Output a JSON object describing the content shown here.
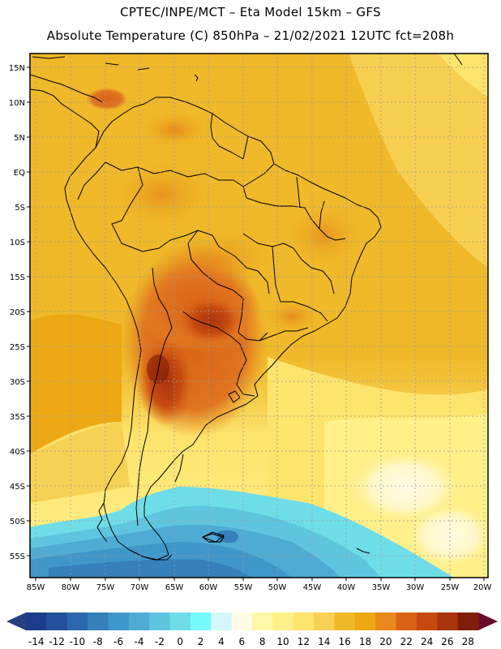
{
  "title_line1": "CPTEC/INPE/MCT –  Eta Model 15km – GFS",
  "title_line2": "Absolute Temperature (C) 850hPa – 21/02/2021 12UTC fct=208h",
  "map": {
    "lat_labels": [
      "15N",
      "10N",
      "5N",
      "EQ",
      "5S",
      "10S",
      "15S",
      "20S",
      "25S",
      "30S",
      "35S",
      "40S",
      "45S",
      "50S",
      "55S"
    ],
    "lon_labels": [
      "85W",
      "80W",
      "75W",
      "70W",
      "65W",
      "60W",
      "55W",
      "50W",
      "45W",
      "40W",
      "35W",
      "30W",
      "25W",
      "20W"
    ]
  },
  "colorbar": {
    "ticks": [
      "-14",
      "-12",
      "-10",
      "-8",
      "-6",
      "-4",
      "-2",
      "0",
      "2",
      "4",
      "6",
      "8",
      "10",
      "12",
      "14",
      "16",
      "18",
      "20",
      "22",
      "24",
      "26",
      "28"
    ],
    "colors": [
      "#1d3d8c",
      "#24519c",
      "#2c68ad",
      "#3680bc",
      "#3f97c9",
      "#4eacd3",
      "#5fc5df",
      "#6fdde8",
      "#76fafa",
      "#d3f7fb",
      "#fffbe6",
      "#fff7a8",
      "#fff08a",
      "#fde46d",
      "#f7d154",
      "#f0b92a",
      "#eda814",
      "#e7891d",
      "#d96314",
      "#c64a10",
      "#a9330c",
      "#7f1e0a"
    ],
    "under_color": "#24407f",
    "over_color": "#6a0a2a"
  }
}
